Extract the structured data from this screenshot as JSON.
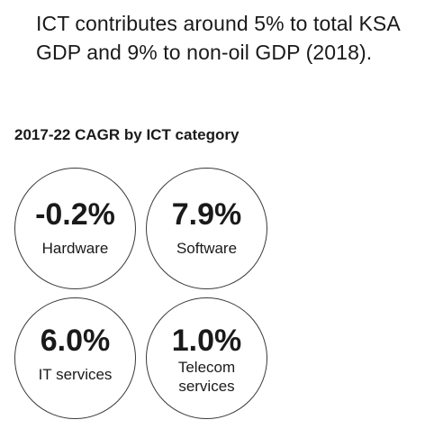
{
  "headline": {
    "line1": "ICT contributes around 5% to total KSA",
    "line2": "GDP and 9% to non-oil GDP (2018)."
  },
  "subtitle": "2017-22 CAGR by ICT category",
  "categories": [
    {
      "value": "-0.2%",
      "label": "Hardware"
    },
    {
      "value": "7.9%",
      "label": "Software"
    },
    {
      "value": "6.0%",
      "label": "IT services"
    },
    {
      "value": "1.0%",
      "label_line1": "Telecom",
      "label_line2": "services"
    }
  ]
}
